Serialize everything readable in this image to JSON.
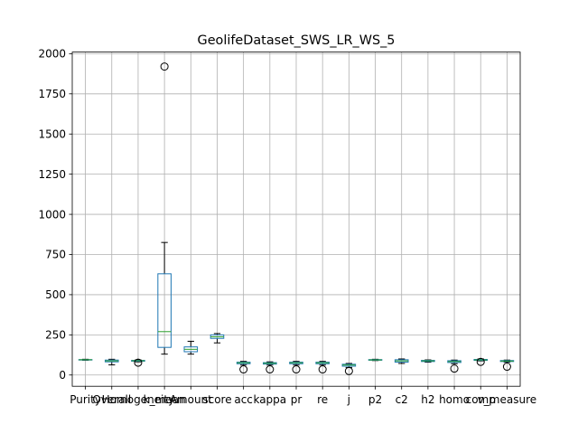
{
  "chart_data": {
    "type": "box",
    "title": "GeolifeDataset_SWS_LR_WS_5",
    "xlabel": "",
    "ylabel": "",
    "ylim": [
      -70,
      2010
    ],
    "yticks": [
      0,
      250,
      500,
      750,
      1000,
      1250,
      1500,
      1750,
      2000
    ],
    "grid": true,
    "colors": {
      "box": "#1f77b4",
      "median": "#2ca02c",
      "whisker": "#000000",
      "grid": "#b0b0b0"
    },
    "categories": [
      "Purity",
      "Overall",
      "Homogeneity",
      "k_mean",
      "Amount",
      "score",
      "acc",
      "kappa",
      "pr",
      "re",
      "j",
      "p2",
      "c2",
      "h2",
      "homo",
      "comp",
      "v_measure"
    ],
    "tick_labels": [
      "Purity",
      "Overall",
      "Homogeneity",
      "k_mean",
      "Amount",
      "score",
      "acc",
      "kappa",
      "pr",
      "re",
      "j",
      "p2",
      "c2",
      "h2",
      "homo",
      "comp",
      "v_measure"
    ],
    "boxes": [
      {
        "name": "Purity",
        "whislo": 92,
        "q1": 94,
        "med": 95,
        "q3": 96,
        "whishi": 98,
        "fliers": []
      },
      {
        "name": "Overall",
        "whislo": 63,
        "q1": 82,
        "med": 88,
        "q3": 93,
        "whishi": 98,
        "fliers": []
      },
      {
        "name": "Homogeneity",
        "whislo": 82,
        "q1": 86,
        "med": 89,
        "q3": 91,
        "whishi": 94,
        "fliers": [
          77
        ]
      },
      {
        "name": "k_mean",
        "whislo": 130,
        "q1": 172,
        "med": 270,
        "q3": 630,
        "whishi": 825,
        "fliers": [
          1920
        ]
      },
      {
        "name": "Amount",
        "whislo": 130,
        "q1": 145,
        "med": 160,
        "q3": 175,
        "whishi": 210,
        "fliers": []
      },
      {
        "name": "score",
        "whislo": 200,
        "q1": 228,
        "med": 238,
        "q3": 250,
        "whishi": 258,
        "fliers": []
      },
      {
        "name": "acc",
        "whislo": 62,
        "q1": 70,
        "med": 76,
        "q3": 80,
        "whishi": 85,
        "fliers": [
          35
        ]
      },
      {
        "name": "kappa",
        "whislo": 62,
        "q1": 68,
        "med": 73,
        "q3": 77,
        "whishi": 82,
        "fliers": [
          35
        ]
      },
      {
        "name": "pr",
        "whislo": 62,
        "q1": 70,
        "med": 76,
        "q3": 80,
        "whishi": 85,
        "fliers": [
          35
        ]
      },
      {
        "name": "re",
        "whislo": 62,
        "q1": 70,
        "med": 76,
        "q3": 80,
        "whishi": 85,
        "fliers": [
          35
        ]
      },
      {
        "name": "j",
        "whislo": 47,
        "q1": 55,
        "med": 62,
        "q3": 67,
        "whishi": 72,
        "fliers": [
          25
        ]
      },
      {
        "name": "p2",
        "whislo": 90,
        "q1": 92,
        "med": 94,
        "q3": 96,
        "whishi": 98,
        "fliers": []
      },
      {
        "name": "c2",
        "whislo": 72,
        "q1": 80,
        "med": 88,
        "q3": 95,
        "whishi": 100,
        "fliers": []
      },
      {
        "name": "h2",
        "whislo": 80,
        "q1": 84,
        "med": 88,
        "q3": 91,
        "whishi": 94,
        "fliers": []
      },
      {
        "name": "homo",
        "whislo": 70,
        "q1": 78,
        "med": 84,
        "q3": 89,
        "whishi": 93,
        "fliers": [
          40
        ]
      },
      {
        "name": "comp",
        "whislo": 88,
        "q1": 91,
        "med": 94,
        "q3": 97,
        "whishi": 100,
        "fliers": [
          82
        ]
      },
      {
        "name": "v_measure",
        "whislo": 80,
        "q1": 84,
        "med": 87,
        "q3": 90,
        "whishi": 93,
        "fliers": [
          52
        ]
      }
    ]
  }
}
